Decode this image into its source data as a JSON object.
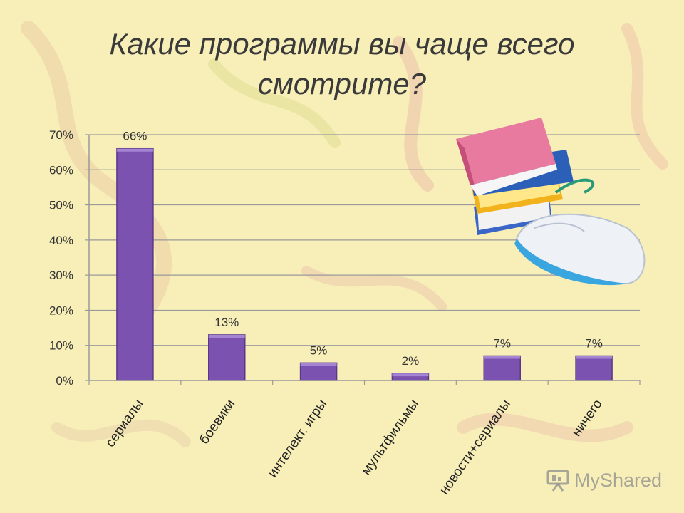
{
  "title": "Какие программы вы чаще всего смотрите?",
  "watermark": "MyShared",
  "colors": {
    "background": "#f8efb8",
    "bar": "#7b52b0",
    "bar_edge": "#5a3888",
    "grid": "#9a9a9a"
  },
  "chart_data": {
    "type": "bar",
    "title": "",
    "xlabel": "",
    "ylabel": "",
    "categories": [
      "сериалы",
      "боевики",
      "интелект. игры",
      "мультфильмы",
      "новости+сериалы",
      "ничего"
    ],
    "values": [
      66,
      13,
      5,
      2,
      7,
      7
    ],
    "data_labels": [
      "66%",
      "13%",
      "5%",
      "2%",
      "7%",
      "7%"
    ],
    "ylim": [
      0,
      70
    ],
    "yticks": [
      0,
      10,
      20,
      30,
      40,
      50,
      60,
      70
    ],
    "ytick_labels": [
      "0%",
      "10%",
      "20%",
      "30%",
      "40%",
      "50%",
      "60%",
      "70%"
    ],
    "grid": true,
    "legend": "none"
  }
}
